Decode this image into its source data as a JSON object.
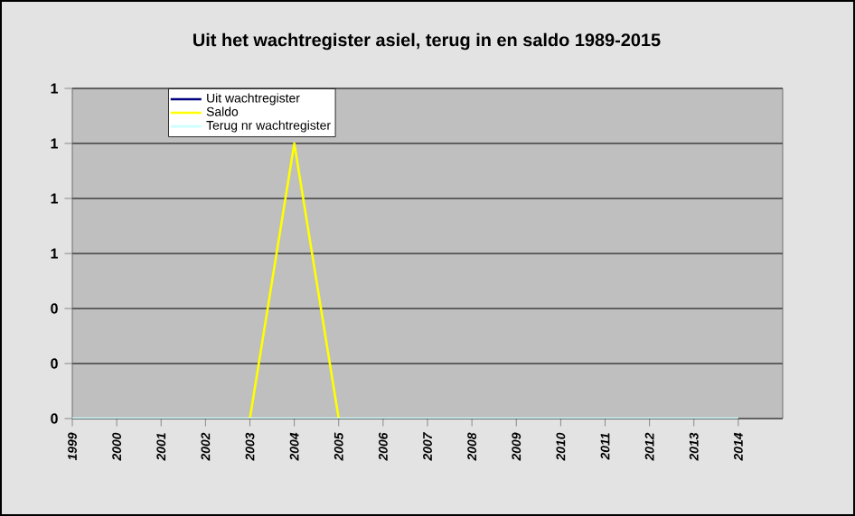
{
  "chart_data": {
    "type": "line",
    "title": "Uit het wachtregister asiel, terug in en saldo 1989-2015",
    "categories": [
      "1999",
      "2000",
      "2001",
      "2002",
      "2003",
      "2004",
      "2005",
      "2006",
      "2007",
      "2008",
      "2009",
      "2010",
      "2011",
      "2012",
      "2013",
      "2014"
    ],
    "series": [
      {
        "name": "Uit wachtregister",
        "color": "#000080",
        "values": [
          null,
          null,
          null,
          null,
          null,
          null,
          null,
          null,
          null,
          null,
          null,
          null,
          null,
          null,
          null,
          null
        ]
      },
      {
        "name": "Saldo",
        "color": "#ffff00",
        "values": [
          null,
          null,
          null,
          null,
          0,
          1,
          0,
          null,
          null,
          null,
          null,
          null,
          null,
          null,
          null,
          null
        ]
      },
      {
        "name": "Terug nr wachtregister",
        "color": "#ccffff",
        "values": [
          0,
          0,
          0,
          0,
          0,
          0,
          0,
          0,
          0,
          0,
          0,
          0,
          0,
          0,
          0,
          0
        ]
      }
    ],
    "ylim": [
      0,
      1.2
    ],
    "yticks": [
      {
        "value": 0,
        "label": "0"
      },
      {
        "value": 0.2,
        "label": "0"
      },
      {
        "value": 0.4,
        "label": "0"
      },
      {
        "value": 0.6,
        "label": "1"
      },
      {
        "value": 0.8,
        "label": "1"
      },
      {
        "value": 1.0,
        "label": "1"
      },
      {
        "value": 1.2,
        "label": "1"
      }
    ],
    "grid": "y",
    "legend": "top left",
    "marker": "none",
    "line_style": "solid"
  }
}
